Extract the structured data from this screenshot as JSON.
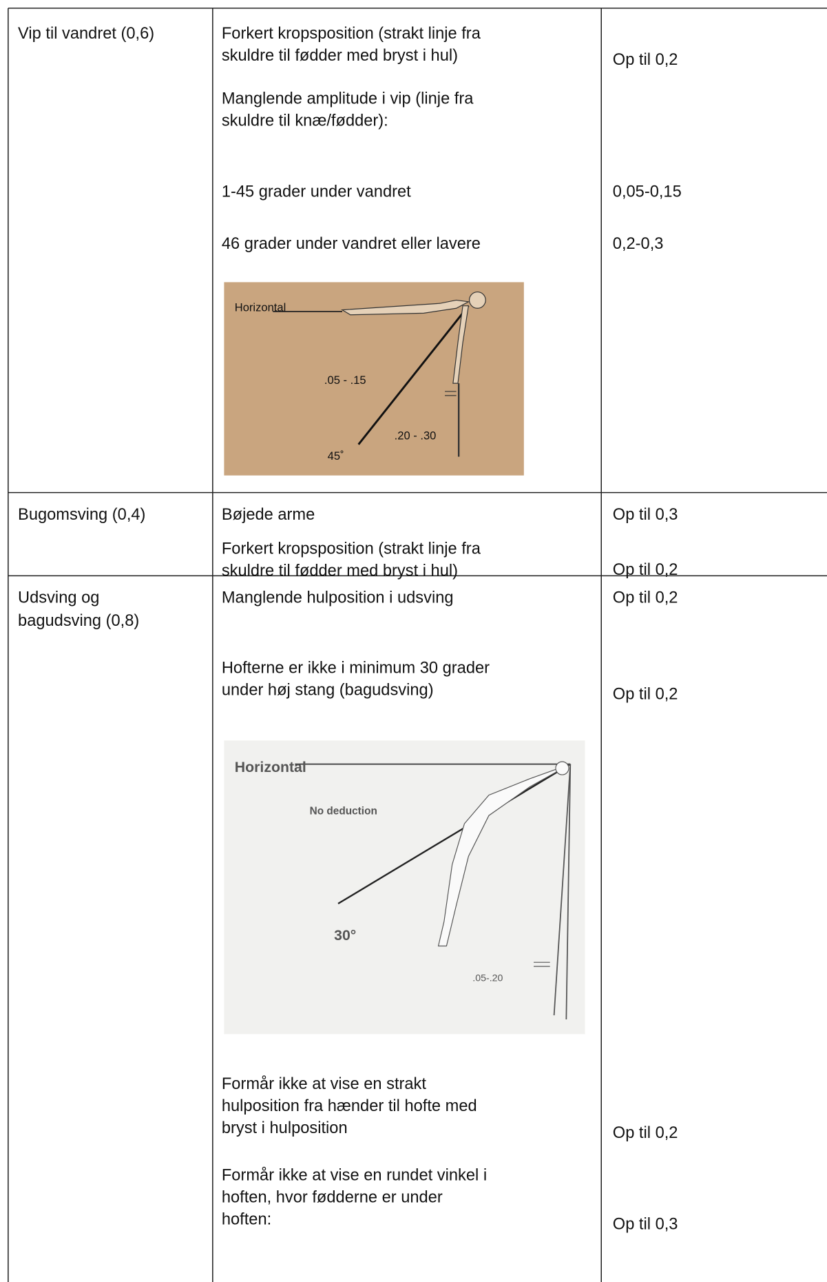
{
  "table": {
    "rows": [
      {
        "item": [
          "Vip til vandret (0,6)"
        ],
        "entries": [
          {
            "text": [
              "Forkert kropsposition (strakt linje fra",
              "skuldre til fødder med bryst i hul)"
            ],
            "deduction": "Op til 0,2"
          },
          {
            "text": [
              "Manglende amplitude i vip (linje fra",
              "skuldre til knæ/fødder):"
            ]
          },
          {
            "text": [
              "1-45 grader under vandret"
            ],
            "deduction": "0,05-0,15"
          },
          {
            "text": [
              "46 grader under vandret eller lavere"
            ],
            "deduction": "0,2-0,3"
          }
        ],
        "figure": {
          "labels": [
            "Horizontal",
            ".05 - .15",
            ".20 - .30",
            "45˚"
          ]
        }
      },
      {
        "item": [
          "Bugomsving (0,4)"
        ],
        "entries": [
          {
            "text": [
              "Bøjede arme"
            ],
            "deduction": "Op til 0,3"
          },
          {
            "text": [
              "Forkert kropsposition (strakt linje fra",
              "skuldre til fødder med bryst i hul)"
            ],
            "deduction": "Op til 0,2"
          }
        ]
      },
      {
        "item": [
          "Udsving og",
          "bagudsving (0,8)"
        ],
        "entries": [
          {
            "text": [
              "Manglende hulposition i udsving"
            ],
            "deduction": "Op til 0,2"
          },
          {
            "text": [
              "Hofterne er ikke i minimum 30 grader",
              "under høj stang (bagudsving)"
            ],
            "deduction": "Op til 0,2"
          },
          {
            "text": [
              "Formår ikke at vise en strakt",
              "hulposition fra hænder til hofte med",
              "bryst i hulposition"
            ],
            "deduction": "Op til 0,2"
          },
          {
            "text": [
              "Formår ikke at vise en rundet vinkel i",
              "hoften, hvor fødderne er under",
              "hoften:"
            ],
            "deduction": "Op til 0,3"
          }
        ],
        "figure": {
          "labels": [
            "Horizontal",
            "No deduction",
            "30°",
            ".05-.20"
          ]
        }
      }
    ]
  }
}
